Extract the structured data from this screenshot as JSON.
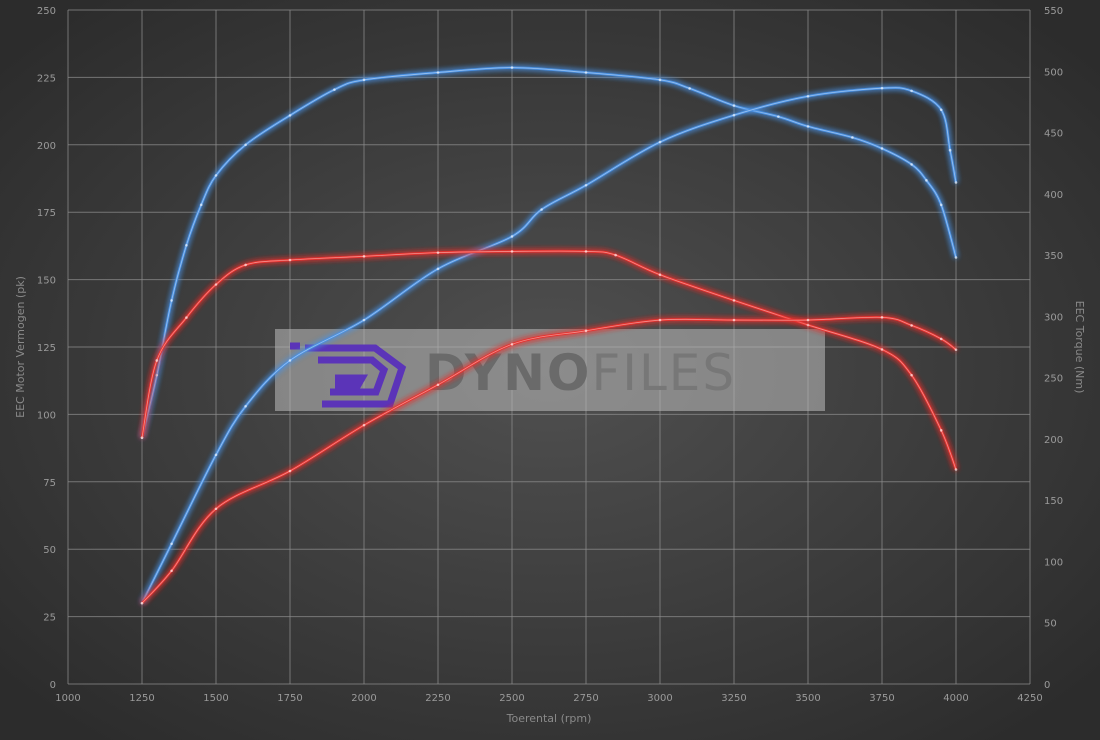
{
  "chart_data": {
    "type": "line",
    "title": "",
    "xlabel": "Toerental (rpm)",
    "ylabel_left": "EEC Motor Vermogen (pk)",
    "ylabel_right": "EEC Torque (Nm)",
    "xlim": [
      1000,
      4250
    ],
    "ylim_left": [
      0,
      250
    ],
    "ylim_right": [
      0,
      550
    ],
    "xticks": [
      "1000",
      "1250",
      "1500",
      "1750",
      "2000",
      "2250",
      "2500",
      "2750",
      "3000",
      "3250",
      "3500",
      "3750",
      "4000",
      "4250"
    ],
    "yticks_left": [
      "0",
      "25",
      "50",
      "75",
      "100",
      "125",
      "150",
      "175",
      "200",
      "225",
      "250"
    ],
    "yticks_right": [
      "0",
      "50",
      "100",
      "150",
      "200",
      "250",
      "300",
      "350",
      "400",
      "450",
      "500",
      "550"
    ],
    "grid": true,
    "background": "dark radial gradient",
    "colors": {
      "tuned": "#4a90e2",
      "stock": "#e8322e"
    },
    "series": [
      {
        "key": "tuned-torque",
        "axis": "right",
        "color": "#4a90e2",
        "x": [
          1250,
          1300,
          1350,
          1400,
          1450,
          1500,
          1600,
          1750,
          1900,
          2000,
          2250,
          2500,
          2750,
          3000,
          3100,
          3250,
          3400,
          3500,
          3650,
          3750,
          3850,
          3900,
          3950,
          4000
        ],
        "y": [
          201,
          252,
          313,
          358,
          391,
          415,
          440,
          464,
          485,
          493,
          499,
          503,
          499,
          493,
          486,
          472,
          463,
          455,
          446,
          437,
          424,
          411,
          391,
          348
        ]
      },
      {
        "key": "tuned-power",
        "axis": "left",
        "color": "#4a90e2",
        "x": [
          1250,
          1350,
          1500,
          1600,
          1750,
          2000,
          2250,
          2500,
          2600,
          2750,
          3000,
          3250,
          3500,
          3750,
          3850,
          3950,
          3980,
          4000
        ],
        "y": [
          30,
          52,
          85,
          103,
          120,
          135,
          154,
          166,
          176,
          185,
          201,
          211,
          218,
          221,
          220,
          213,
          198,
          186
        ]
      },
      {
        "key": "stock-torque",
        "axis": "right",
        "color": "#e8322e",
        "x": [
          1250,
          1300,
          1400,
          1500,
          1600,
          1750,
          2000,
          2250,
          2500,
          2750,
          2850,
          3000,
          3250,
          3500,
          3750,
          3850,
          3950,
          4000
        ],
        "y": [
          201,
          264,
          299,
          326,
          342,
          346,
          349,
          352,
          353,
          353,
          350,
          334,
          313,
          293,
          273,
          252,
          207,
          175
        ]
      },
      {
        "key": "stock-power",
        "axis": "left",
        "color": "#e8322e",
        "x": [
          1250,
          1350,
          1500,
          1750,
          2000,
          2250,
          2500,
          2750,
          3000,
          3250,
          3500,
          3750,
          3850,
          3950,
          4000
        ],
        "y": [
          30,
          42,
          65,
          79,
          96,
          111,
          126,
          131,
          135,
          135,
          135,
          136,
          133,
          128,
          124
        ]
      }
    ]
  },
  "watermark": {
    "text": "DYNOFILES",
    "logo_color": "#5b34b8"
  }
}
